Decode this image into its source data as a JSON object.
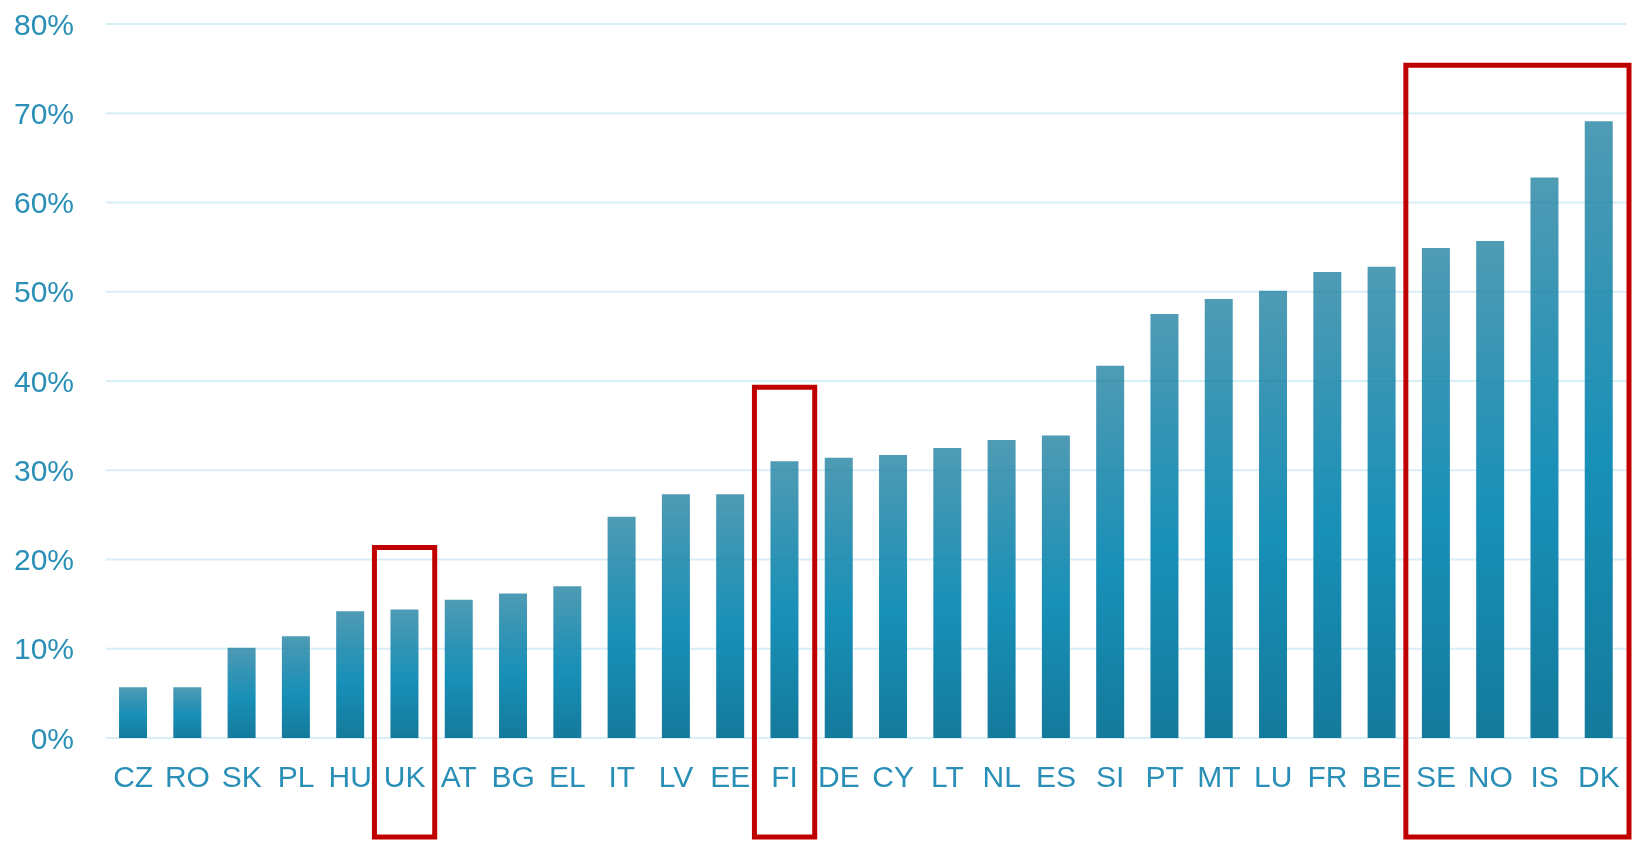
{
  "chart_data": {
    "type": "bar",
    "categories": [
      "CZ",
      "RO",
      "SK",
      "PL",
      "HU",
      "UK",
      "AT",
      "BG",
      "EL",
      "IT",
      "LV",
      "EE",
      "FI",
      "DE",
      "CY",
      "LT",
      "NL",
      "ES",
      "SI",
      "PT",
      "MT",
      "LU",
      "FR",
      "BE",
      "SE",
      "NO",
      "IS",
      "DK"
    ],
    "values": [
      5.7,
      5.7,
      10.1,
      11.4,
      14.2,
      14.4,
      15.5,
      16.2,
      17.0,
      24.8,
      27.3,
      27.3,
      31.0,
      31.4,
      31.7,
      32.5,
      33.4,
      33.9,
      41.7,
      47.5,
      49.2,
      50.1,
      52.2,
      52.8,
      54.9,
      55.7,
      62.8,
      69.1
    ],
    "color": "#1890b8",
    "ylim": [
      0,
      80
    ],
    "yticks": [
      {
        "value": 0,
        "label": "0%"
      },
      {
        "value": 10,
        "label": "10%"
      },
      {
        "value": 20,
        "label": "20%"
      },
      {
        "value": 30,
        "label": "30%"
      },
      {
        "value": 40,
        "label": "40%"
      },
      {
        "value": 50,
        "label": "50%"
      },
      {
        "value": 60,
        "label": "60%"
      },
      {
        "value": 70,
        "label": "70%"
      },
      {
        "value": 80,
        "label": "80%"
      }
    ],
    "grid": "y"
  }
}
